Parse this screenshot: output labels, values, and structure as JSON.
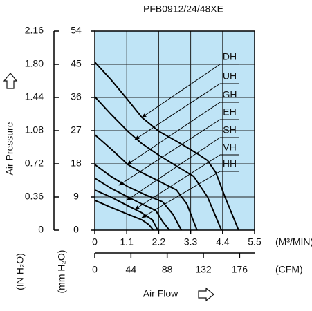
{
  "chart_data": {
    "type": "line",
    "title": "PFB0912/24/48XE",
    "x_label": "Air Flow",
    "y_label": "Air Pressure",
    "x_unit": "(M³/MIN)",
    "x2_unit": "(CFM)",
    "y_unit": "(mm H₂O)",
    "y2_unit": "(IN H₂O)",
    "xlim": [
      0,
      5.5
    ],
    "xticks": [
      0,
      1.1,
      2.2,
      3.3,
      4.4,
      5.5
    ],
    "x2lim": [
      0,
      194.2
    ],
    "x2ticks": [
      0,
      44,
      88,
      132,
      176
    ],
    "ylim": [
      0,
      54
    ],
    "yticks": [
      0,
      9,
      18,
      27,
      36,
      45,
      54
    ],
    "y2lim": [
      0,
      2.16
    ],
    "y2ticks": [
      0,
      0.36,
      0.72,
      1.08,
      1.44,
      {
        "value": 1.8,
        "label": "1.80"
      },
      2.16
    ],
    "grid": true,
    "background": "#bfe4f6",
    "series": [
      {
        "name": "DH",
        "color": "#000000",
        "x": [
          0,
          0.55,
          1.14,
          1.62,
          2.21,
          2.93,
          3.52,
          3.88,
          4.17,
          4.48,
          4.95
        ],
        "values": [
          45.6,
          40.9,
          35.3,
          30.6,
          26.8,
          23.6,
          20.8,
          18.9,
          15.6,
          9.0,
          0
        ]
      },
      {
        "name": "UH",
        "color": "#000000",
        "x": [
          0,
          0.55,
          1.14,
          1.62,
          2.21,
          2.81,
          3.4,
          3.88,
          4.36
        ],
        "values": [
          36.2,
          31.5,
          26.8,
          23.5,
          20.3,
          17.4,
          14.6,
          9.0,
          0
        ]
      },
      {
        "name": "GH",
        "color": "#000000",
        "x": [
          0,
          0.55,
          1.14,
          1.62,
          2.21,
          2.81,
          3.17,
          3.52
        ],
        "values": [
          25.9,
          22.1,
          17.8,
          15.6,
          13.3,
          10.9,
          7.1,
          0
        ]
      },
      {
        "name": "EH",
        "color": "#000000",
        "x": [
          0,
          0.55,
          1.14,
          1.74,
          2.33,
          2.69,
          2.98
        ],
        "values": [
          17.8,
          14.6,
          11.8,
          9.6,
          7.7,
          4.3,
          0
        ]
      },
      {
        "name": "SH",
        "color": "#000000",
        "x": [
          0,
          0.55,
          1.14,
          1.62,
          2.1,
          2.33,
          2.57
        ],
        "values": [
          14.1,
          11.4,
          9.0,
          7.1,
          5.3,
          2.4,
          0
        ]
      },
      {
        "name": "VH",
        "color": "#000000",
        "x": [
          0,
          0.55,
          1.14,
          1.62,
          1.98,
          2.17
        ],
        "values": [
          10.9,
          9.0,
          6.6,
          4.7,
          2.8,
          0
        ]
      },
      {
        "name": "HH",
        "color": "#000000",
        "x": [
          0,
          0.55,
          1.14,
          1.62,
          1.86,
          2.02
        ],
        "values": [
          8.1,
          6.2,
          4.3,
          2.8,
          1.5,
          0
        ]
      }
    ]
  }
}
